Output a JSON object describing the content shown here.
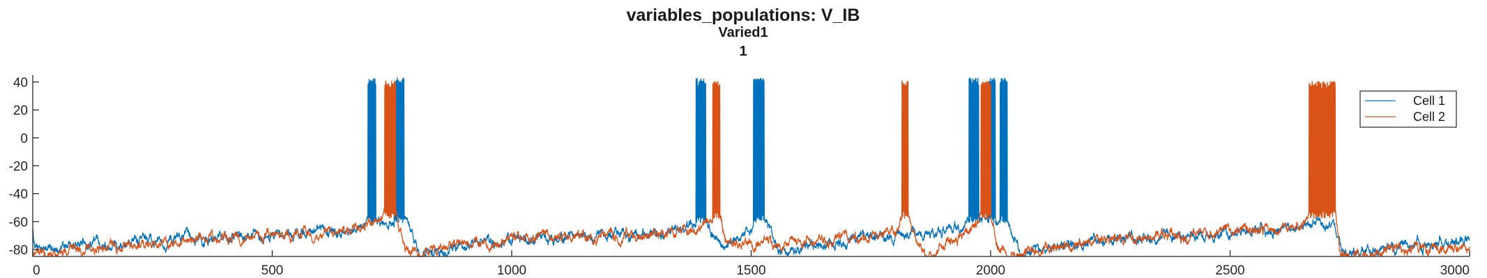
{
  "chart_data": {
    "type": "line",
    "title": "variables_populations: V_IB",
    "subtitle": "Varied1",
    "subtitle2": "1",
    "xlabel": "",
    "ylabel": "",
    "xlim": [
      0,
      3000
    ],
    "ylim": [
      -85,
      45
    ],
    "xticks": [
      0,
      500,
      1000,
      1500,
      2000,
      2500,
      3000
    ],
    "yticks": [
      -80,
      -60,
      -40,
      -20,
      0,
      20,
      40
    ],
    "grid": false,
    "legend_position": "top-right",
    "series": [
      {
        "name": "Cell 1",
        "color": "#0072BD",
        "burst_windows": [
          [
            700,
            716
          ],
          [
            755,
            775
          ],
          [
            1385,
            1405
          ],
          [
            1505,
            1527
          ],
          [
            1955,
            1975
          ],
          [
            1995,
            2010
          ],
          [
            2020,
            2035
          ]
        ],
        "burst_peak": 40,
        "burst_trough": -58,
        "baseline": [
          [
            0,
            -65
          ],
          [
            5,
            -80
          ],
          [
            80,
            -78
          ],
          [
            100,
            -76
          ],
          [
            300,
            -73
          ],
          [
            500,
            -70
          ],
          [
            560,
            -70
          ],
          [
            600,
            -64
          ],
          [
            620,
            -70
          ],
          [
            660,
            -67
          ],
          [
            690,
            -62
          ],
          [
            700,
            -58
          ],
          [
            716,
            -58
          ],
          [
            725,
            -64
          ],
          [
            755,
            -60
          ],
          [
            775,
            -56
          ],
          [
            790,
            -66
          ],
          [
            810,
            -84
          ],
          [
            840,
            -82
          ],
          [
            900,
            -76
          ],
          [
            1000,
            -73
          ],
          [
            1100,
            -72
          ],
          [
            1200,
            -71
          ],
          [
            1250,
            -71
          ],
          [
            1300,
            -68
          ],
          [
            1350,
            -66
          ],
          [
            1385,
            -60
          ],
          [
            1405,
            -58
          ],
          [
            1420,
            -70
          ],
          [
            1440,
            -78
          ],
          [
            1480,
            -72
          ],
          [
            1505,
            -62
          ],
          [
            1527,
            -58
          ],
          [
            1545,
            -74
          ],
          [
            1560,
            -82
          ],
          [
            1580,
            -80
          ],
          [
            1620,
            -76
          ],
          [
            1700,
            -74
          ],
          [
            1750,
            -70
          ],
          [
            1800,
            -72
          ],
          [
            1850,
            -67
          ],
          [
            1880,
            -67
          ],
          [
            1900,
            -64
          ],
          [
            1955,
            -60
          ],
          [
            1975,
            -58
          ],
          [
            1995,
            -60
          ],
          [
            2035,
            -58
          ],
          [
            2045,
            -72
          ],
          [
            2065,
            -86
          ],
          [
            2100,
            -80
          ],
          [
            2200,
            -75
          ],
          [
            2300,
            -72
          ],
          [
            2400,
            -70
          ],
          [
            2500,
            -68
          ],
          [
            2600,
            -66
          ],
          [
            2680,
            -62
          ],
          [
            2700,
            -62
          ],
          [
            2720,
            -65
          ],
          [
            2735,
            -84
          ],
          [
            2760,
            -82
          ],
          [
            2850,
            -78
          ],
          [
            2950,
            -76
          ],
          [
            3000,
            -72
          ]
        ]
      },
      {
        "name": "Cell 2",
        "color": "#D95319",
        "burst_windows": [
          [
            735,
            758
          ],
          [
            1420,
            1435
          ],
          [
            1815,
            1828
          ],
          [
            1980,
            2000
          ],
          [
            2665,
            2720
          ]
        ],
        "burst_peak": 38,
        "burst_trough": -55,
        "baseline": [
          [
            0,
            -80
          ],
          [
            70,
            -84
          ],
          [
            80,
            -78
          ],
          [
            100,
            -79
          ],
          [
            300,
            -75
          ],
          [
            500,
            -70
          ],
          [
            600,
            -68
          ],
          [
            650,
            -66
          ],
          [
            700,
            -62
          ],
          [
            735,
            -55
          ],
          [
            758,
            -55
          ],
          [
            770,
            -72
          ],
          [
            785,
            -84
          ],
          [
            820,
            -80
          ],
          [
            900,
            -76
          ],
          [
            1000,
            -72
          ],
          [
            1100,
            -71
          ],
          [
            1200,
            -70
          ],
          [
            1300,
            -68
          ],
          [
            1380,
            -66
          ],
          [
            1420,
            -58
          ],
          [
            1435,
            -58
          ],
          [
            1450,
            -72
          ],
          [
            1480,
            -76
          ],
          [
            1550,
            -76
          ],
          [
            1650,
            -74
          ],
          [
            1750,
            -70
          ],
          [
            1800,
            -68
          ],
          [
            1815,
            -55
          ],
          [
            1828,
            -55
          ],
          [
            1845,
            -76
          ],
          [
            1870,
            -86
          ],
          [
            1900,
            -78
          ],
          [
            1950,
            -68
          ],
          [
            1980,
            -58
          ],
          [
            2000,
            -58
          ],
          [
            2015,
            -74
          ],
          [
            2040,
            -86
          ],
          [
            2060,
            -84
          ],
          [
            2100,
            -80
          ],
          [
            2200,
            -76
          ],
          [
            2300,
            -72
          ],
          [
            2400,
            -70
          ],
          [
            2500,
            -66
          ],
          [
            2600,
            -66
          ],
          [
            2650,
            -64
          ],
          [
            2665,
            -55
          ],
          [
            2720,
            -55
          ],
          [
            2730,
            -84
          ],
          [
            2760,
            -84
          ],
          [
            2850,
            -80
          ],
          [
            2950,
            -78
          ],
          [
            3000,
            -76
          ]
        ]
      }
    ]
  }
}
